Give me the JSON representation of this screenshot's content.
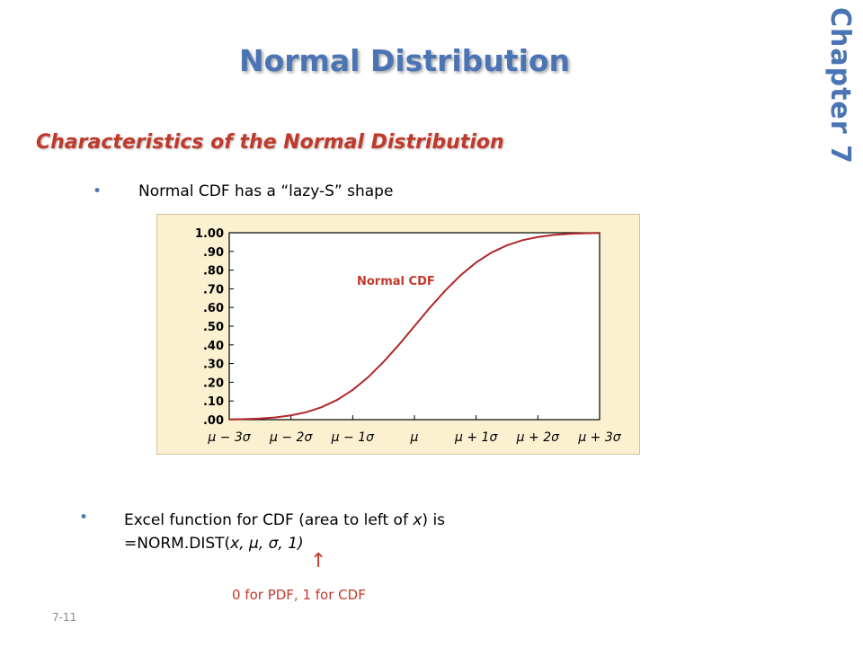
{
  "slide": {
    "title": "Normal Distribution",
    "chapter": "Chapter  7",
    "subtitle": "Characteristics of the Normal Distribution",
    "bullet1": "Normal CDF has a “lazy-S” shape",
    "bullet2_line1_pre": "Excel function for CDF (area to left of ",
    "bullet2_line1_var": "x",
    "bullet2_line1_post": ") is",
    "bullet2_line2_pre": "=NORM.DIST(",
    "bullet2_line2_var": "x",
    "bullet2_line2_params": ", μ, σ, 1)",
    "arrow": "↑",
    "note": "0 for PDF, 1 for CDF",
    "slide_number": "7-11",
    "bullet_char": "•"
  },
  "chart_data": {
    "type": "line",
    "curve_label": "Normal CDF",
    "x_ticks": [
      "μ − 3σ",
      "μ − 2σ",
      "μ − 1σ",
      "μ",
      "μ + 1σ",
      "μ + 2σ",
      "μ + 3σ"
    ],
    "y_ticks": [
      "1.00",
      ".90",
      ".80",
      ".70",
      ".60",
      ".50",
      ".40",
      ".30",
      ".20",
      ".10",
      ".00"
    ],
    "xlim": [
      -3,
      3
    ],
    "ylim": [
      0,
      1
    ],
    "series": [
      {
        "x": [
          -3,
          -2.75,
          -2.5,
          -2.25,
          -2,
          -1.75,
          -1.5,
          -1.25,
          -1,
          -0.75,
          -0.5,
          -0.25,
          0,
          0.25,
          0.5,
          0.75,
          1,
          1.25,
          1.5,
          1.75,
          2,
          2.25,
          2.5,
          2.75,
          3
        ],
        "y": [
          0.001,
          0.003,
          0.006,
          0.012,
          0.023,
          0.04,
          0.067,
          0.106,
          0.159,
          0.227,
          0.309,
          0.401,
          0.5,
          0.599,
          0.691,
          0.773,
          0.841,
          0.894,
          0.933,
          0.96,
          0.977,
          0.988,
          0.994,
          0.997,
          0.999
        ]
      }
    ],
    "grid": false,
    "colors": {
      "curve": "#b0272a",
      "label": "#c0392b",
      "background": "#fbf1d1"
    }
  }
}
